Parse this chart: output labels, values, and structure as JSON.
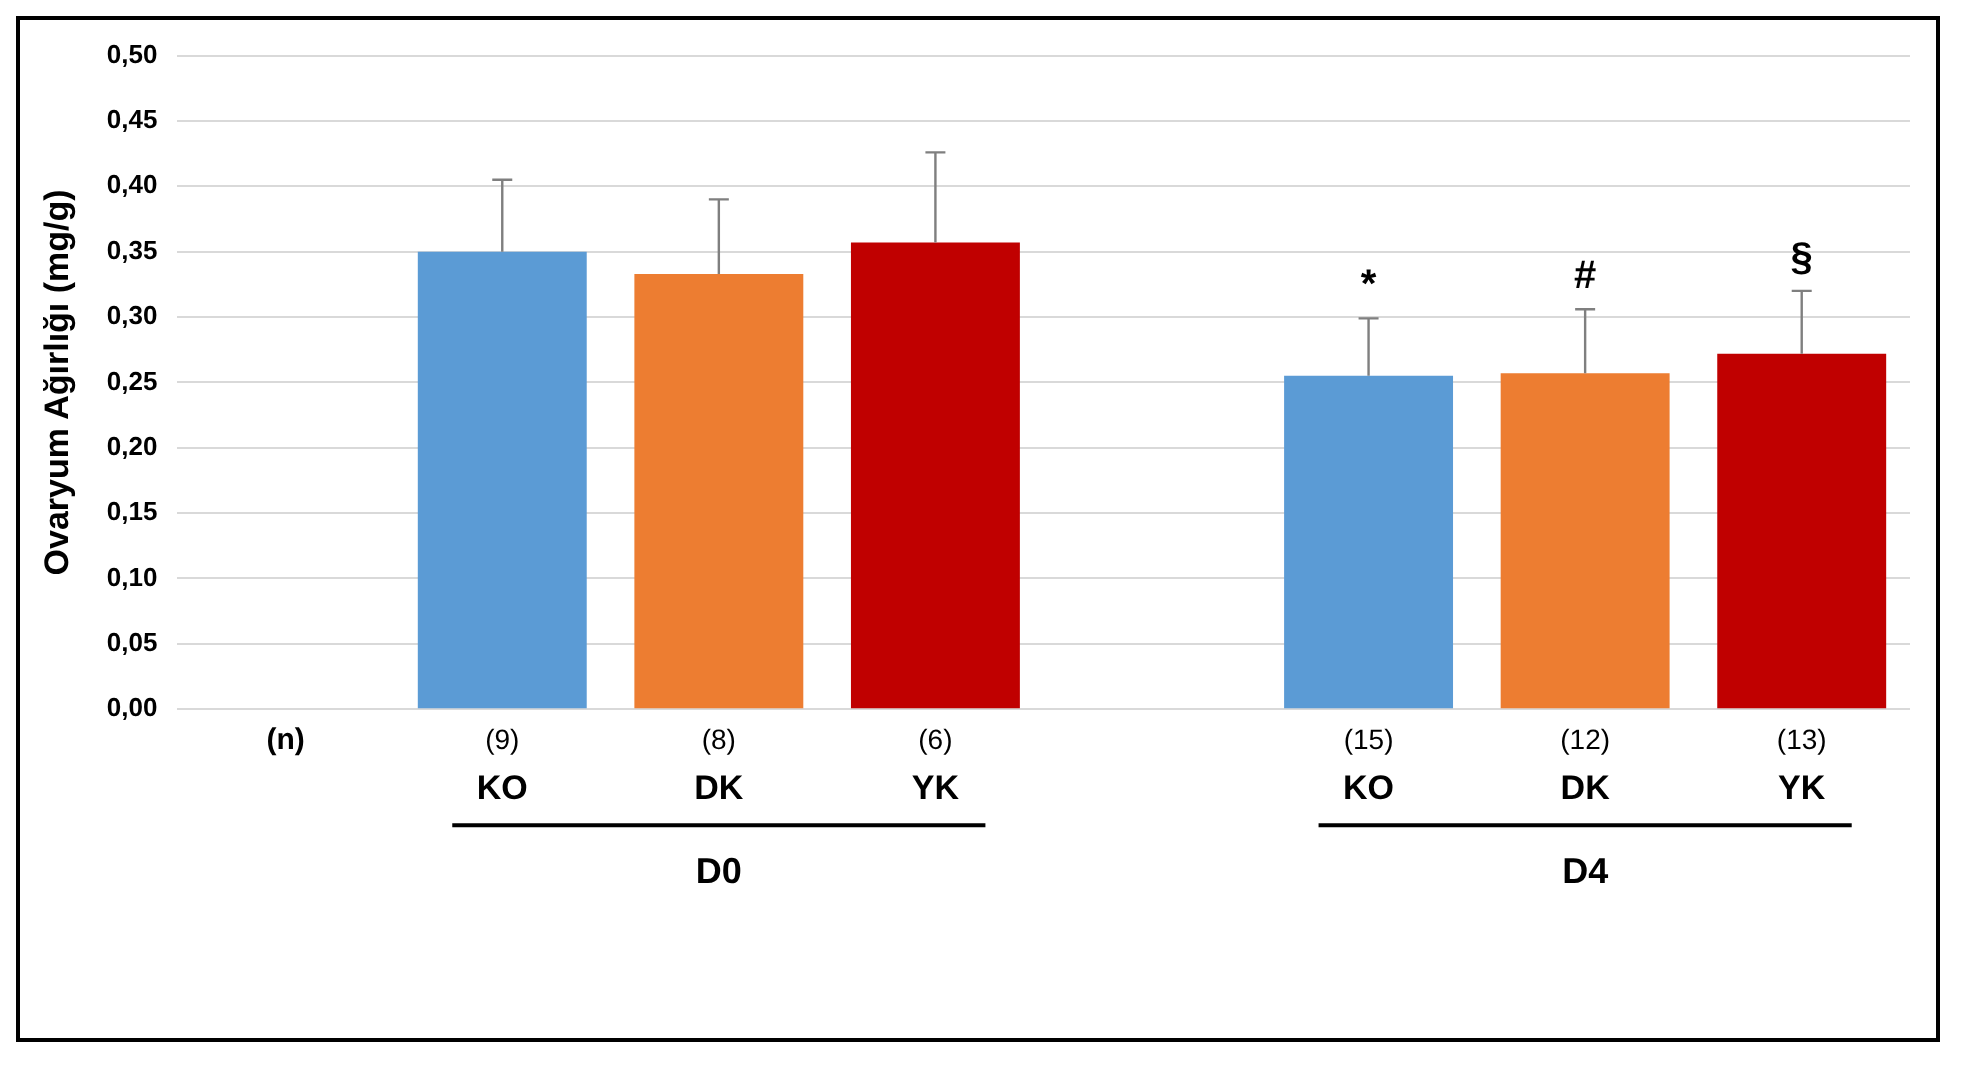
{
  "chart_data": {
    "type": "bar",
    "ylabel": "Ovaryum Ağırlığı (mg/g)",
    "categories": [
      null,
      "KO",
      "DK",
      "YK",
      null,
      "KO",
      "DK",
      "YK"
    ],
    "values": [
      null,
      0.35,
      0.333,
      0.357,
      null,
      0.255,
      0.257,
      0.272
    ],
    "colors": [
      "#5b9bd5",
      "#5b9bd5",
      "#ed7d31",
      "#c00000",
      "#5b9bd5",
      "#5b9bd5",
      "#ed7d31",
      "#c00000"
    ],
    "errors": [
      null,
      0.055,
      0.057,
      0.069,
      null,
      0.044,
      0.049,
      0.048
    ],
    "value_labels": [
      null,
      null,
      null,
      null,
      null,
      "*",
      "#",
      "§"
    ],
    "annotations": [
      "(n)",
      "(9)",
      "(8)",
      "(6)",
      "(15)",
      "(12)",
      "(13)",
      "D0",
      "D4"
    ],
    "ylim": [
      0,
      0.5
    ],
    "yticks": [
      {
        "value": 0,
        "label": "0,00"
      },
      {
        "value": 0.05,
        "label": "0,05"
      },
      {
        "value": 0.1,
        "label": "0,10"
      },
      {
        "value": 0.15,
        "label": "0,15"
      },
      {
        "value": 0.2,
        "label": "0,20"
      },
      {
        "value": 0.25,
        "label": "0,25"
      },
      {
        "value": 0.3,
        "label": "0,30"
      },
      {
        "value": 0.35,
        "label": "0,35"
      },
      {
        "value": 0.4,
        "label": "0,40"
      },
      {
        "value": 0.45,
        "label": "0,45"
      },
      {
        "value": 0.5,
        "label": "0,50"
      }
    ],
    "grid": "y"
  }
}
